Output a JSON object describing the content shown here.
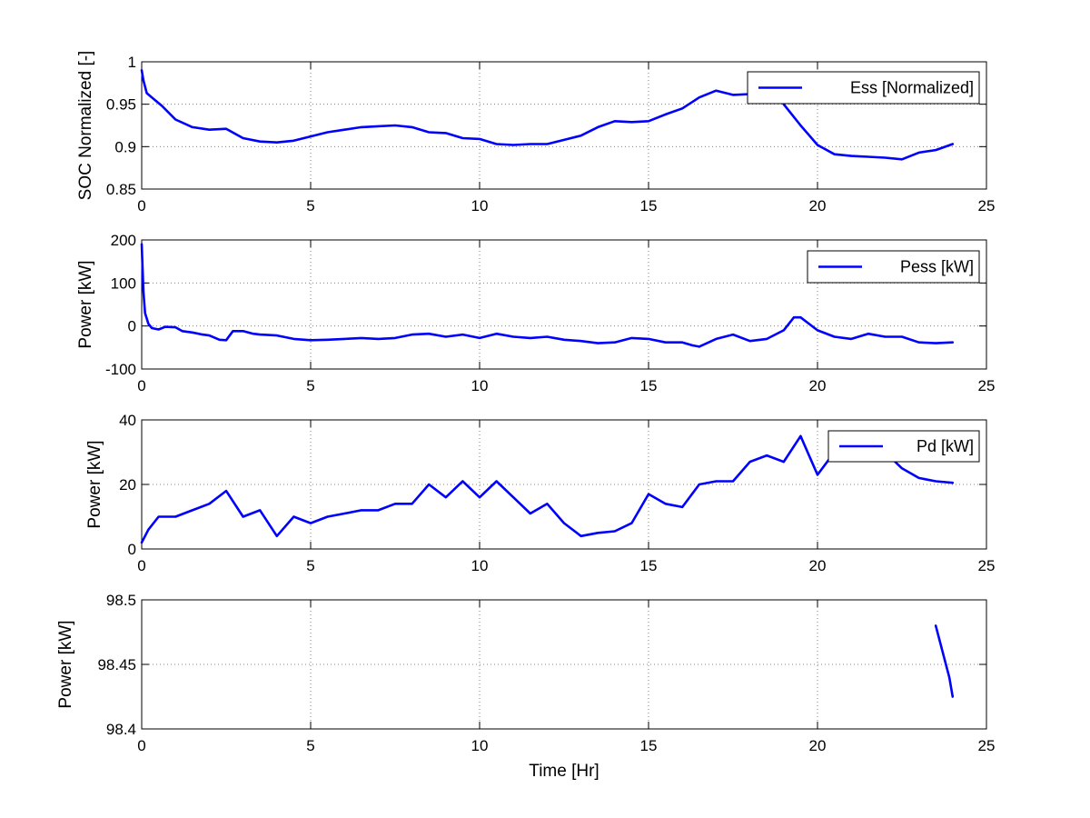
{
  "chart_data": [
    {
      "type": "line",
      "xlim": [
        0,
        25
      ],
      "ylim": [
        0.85,
        1
      ],
      "xticks": [
        "0",
        "5",
        "10",
        "15",
        "20",
        "25"
      ],
      "xtick_values": [
        0,
        5,
        10,
        15,
        20,
        25
      ],
      "yticks": [
        "0.85",
        "0.9",
        "0.95",
        "1"
      ],
      "ytick_values": [
        0.85,
        0.9,
        0.95,
        1
      ],
      "ylabel": "SOC Normalized [-]",
      "xlabel": "",
      "grid": true,
      "legend_position": "top-right",
      "series": [
        {
          "name": "Ess [Normalized]",
          "color": "#0000ff",
          "x": [
            0,
            0.05,
            0.15,
            0.3,
            0.6,
            1,
            1.5,
            2,
            2.5,
            3,
            3.5,
            4,
            4.5,
            5,
            5.5,
            6,
            6.5,
            7,
            7.5,
            8,
            8.5,
            9,
            9.5,
            10,
            10.5,
            11,
            11.5,
            12,
            12.5,
            13,
            13.5,
            14,
            14.5,
            15,
            15.5,
            16,
            16.5,
            17,
            17.5,
            18,
            18.3,
            18.8,
            19,
            19.5,
            20,
            20.5,
            21,
            21.5,
            22,
            22.5,
            23,
            23.5,
            24
          ],
          "y": [
            0.99,
            0.978,
            0.963,
            0.958,
            0.948,
            0.932,
            0.923,
            0.92,
            0.921,
            0.91,
            0.906,
            0.905,
            0.907,
            0.912,
            0.917,
            0.92,
            0.923,
            0.924,
            0.925,
            0.923,
            0.917,
            0.916,
            0.91,
            0.909,
            0.903,
            0.902,
            0.903,
            0.903,
            0.908,
            0.913,
            0.923,
            0.93,
            0.929,
            0.93,
            0.938,
            0.945,
            0.958,
            0.966,
            0.961,
            0.962,
            0.964,
            0.962,
            0.95,
            0.925,
            0.902,
            0.891,
            0.889,
            0.888,
            0.887,
            0.885,
            0.893,
            0.896,
            0.903
          ]
        }
      ]
    },
    {
      "type": "line",
      "xlim": [
        0,
        25
      ],
      "ylim": [
        -100,
        200
      ],
      "xticks": [
        "0",
        "5",
        "10",
        "15",
        "20",
        "25"
      ],
      "xtick_values": [
        0,
        5,
        10,
        15,
        20,
        25
      ],
      "yticks": [
        "-100",
        "0",
        "100",
        "200"
      ],
      "ytick_values": [
        -100,
        0,
        100,
        200
      ],
      "ylabel": "Power [kW]",
      "xlabel": "",
      "grid": true,
      "legend_position": "top-right",
      "series": [
        {
          "name": "Pess [kW]",
          "color": "#0000ff",
          "x": [
            0,
            0.05,
            0.1,
            0.2,
            0.3,
            0.5,
            0.7,
            1,
            1.2,
            1.5,
            1.8,
            2,
            2.3,
            2.5,
            2.7,
            3,
            3.3,
            3.5,
            4,
            4.5,
            5,
            5.5,
            6,
            6.5,
            7,
            7.5,
            8,
            8.5,
            9,
            9.5,
            10,
            10.5,
            11,
            11.5,
            12,
            12.5,
            13,
            13.5,
            14,
            14.5,
            15,
            15.5,
            16,
            16.3,
            16.5,
            17,
            17.5,
            18,
            18.5,
            19,
            19.3,
            19.5,
            20,
            20.5,
            21,
            21.5,
            22,
            22.5,
            23,
            23.5,
            24
          ],
          "y": [
            190,
            80,
            30,
            5,
            -5,
            -8,
            -2,
            -3,
            -12,
            -15,
            -20,
            -22,
            -32,
            -33,
            -12,
            -12,
            -18,
            -20,
            -22,
            -30,
            -33,
            -32,
            -30,
            -28,
            -30,
            -28,
            -20,
            -18,
            -25,
            -20,
            -28,
            -18,
            -25,
            -28,
            -25,
            -32,
            -35,
            -40,
            -38,
            -28,
            -30,
            -38,
            -38,
            -45,
            -48,
            -30,
            -20,
            -35,
            -30,
            -10,
            20,
            20,
            -10,
            -25,
            -30,
            -18,
            -25,
            -25,
            -38,
            -40,
            -38
          ]
        }
      ]
    },
    {
      "type": "line",
      "xlim": [
        0,
        25
      ],
      "ylim": [
        0,
        40
      ],
      "xticks": [
        "0",
        "5",
        "10",
        "15",
        "20",
        "25"
      ],
      "xtick_values": [
        0,
        5,
        10,
        15,
        20,
        25
      ],
      "yticks": [
        "0",
        "20",
        "40"
      ],
      "ytick_values": [
        0,
        20,
        40
      ],
      "ylabel": "Power [kW]",
      "xlabel": "",
      "grid": true,
      "legend_position": "top-right",
      "series": [
        {
          "name": "Pd [kW]",
          "color": "#0000ff",
          "x": [
            0,
            0.2,
            0.5,
            1,
            1.5,
            2,
            2.5,
            3,
            3.5,
            4,
            4.5,
            5,
            5.5,
            6,
            6.5,
            7,
            7.5,
            8,
            8.5,
            9,
            9.5,
            10,
            10.5,
            11,
            11.5,
            12,
            12.5,
            13,
            13.5,
            14,
            14.5,
            15,
            15.5,
            16,
            16.5,
            17,
            17.5,
            18,
            18.5,
            19,
            19.5,
            20,
            20.5,
            21,
            21.5,
            22,
            22.5,
            23,
            23.5,
            24
          ],
          "y": [
            2,
            6,
            10,
            10,
            12,
            14,
            18,
            10,
            12,
            4,
            10,
            8,
            10,
            11,
            12,
            12,
            14,
            14,
            20,
            16,
            21,
            16,
            21,
            16,
            11,
            14,
            8,
            4,
            5,
            5.5,
            8,
            17,
            14,
            13,
            20,
            21,
            21,
            27,
            29,
            27,
            35,
            23,
            30,
            31,
            32,
            30,
            25,
            22,
            21,
            20.5
          ]
        }
      ]
    },
    {
      "type": "line",
      "xlim": [
        0,
        25
      ],
      "ylim": [
        98.4,
        98.5
      ],
      "xticks": [
        "0",
        "5",
        "10",
        "15",
        "20",
        "25"
      ],
      "xtick_values": [
        0,
        5,
        10,
        15,
        20,
        25
      ],
      "yticks": [
        "98.4",
        "98.45",
        "98.5"
      ],
      "ytick_values": [
        98.4,
        98.45,
        98.5
      ],
      "ylabel": "Power [kW]",
      "xlabel": "Time [Hr]",
      "grid": true,
      "series": [
        {
          "color": "#0000ff",
          "x": [
            23.5,
            23.6,
            23.75,
            23.9,
            24
          ],
          "y": [
            98.48,
            98.47,
            98.455,
            98.44,
            98.425
          ]
        }
      ]
    }
  ]
}
